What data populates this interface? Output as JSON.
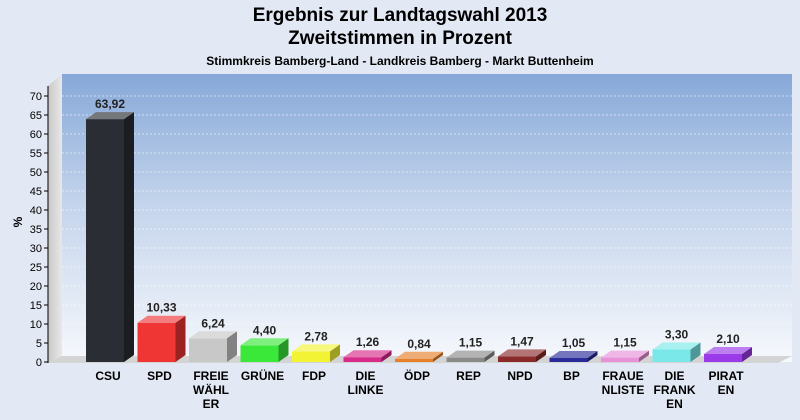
{
  "chart_data": {
    "type": "bar",
    "title": "Ergebnis zur Landtagswahl 2013",
    "subtitle": "Zweitstimmen in Prozent",
    "subsubtitle": "Stimmkreis Bamberg-Land - Landkreis Bamberg - Markt Buttenheim",
    "ylabel": "%",
    "ylim": [
      0,
      70
    ],
    "yticks": [
      0,
      5,
      10,
      15,
      20,
      25,
      30,
      35,
      40,
      45,
      50,
      55,
      60,
      65,
      70
    ],
    "grid": true,
    "categories": [
      [
        "CSU"
      ],
      [
        "SPD"
      ],
      [
        "FREIE",
        "WÄHL",
        "ER"
      ],
      [
        "GRÜNE"
      ],
      [
        "FDP"
      ],
      [
        "DIE",
        "LINKE"
      ],
      [
        "ÖDP"
      ],
      [
        "REP"
      ],
      [
        "NPD"
      ],
      [
        "BP"
      ],
      [
        "FRAUE",
        "NLISTE"
      ],
      [
        "DIE",
        "FRANK",
        "EN"
      ],
      [
        "PIRAT",
        "EN"
      ]
    ],
    "values": [
      63.92,
      10.33,
      6.24,
      4.4,
      2.78,
      1.26,
      0.84,
      1.15,
      1.47,
      1.05,
      1.15,
      3.3,
      2.1
    ],
    "value_labels": [
      "63,92",
      "10,33",
      "6,24",
      "4,40",
      "2,78",
      "1,26",
      "0,84",
      "1,15",
      "1,47",
      "1,05",
      "1,15",
      "3,30",
      "2,10"
    ],
    "colors": [
      "#2a2d33",
      "#f03535",
      "#c8c8c8",
      "#3ae83a",
      "#f3f335",
      "#d72a8a",
      "#e8802a",
      "#8a8a8a",
      "#8a2a2a",
      "#2a2a9a",
      "#e890d8",
      "#7ae8e8",
      "#9a3ae8"
    ]
  }
}
